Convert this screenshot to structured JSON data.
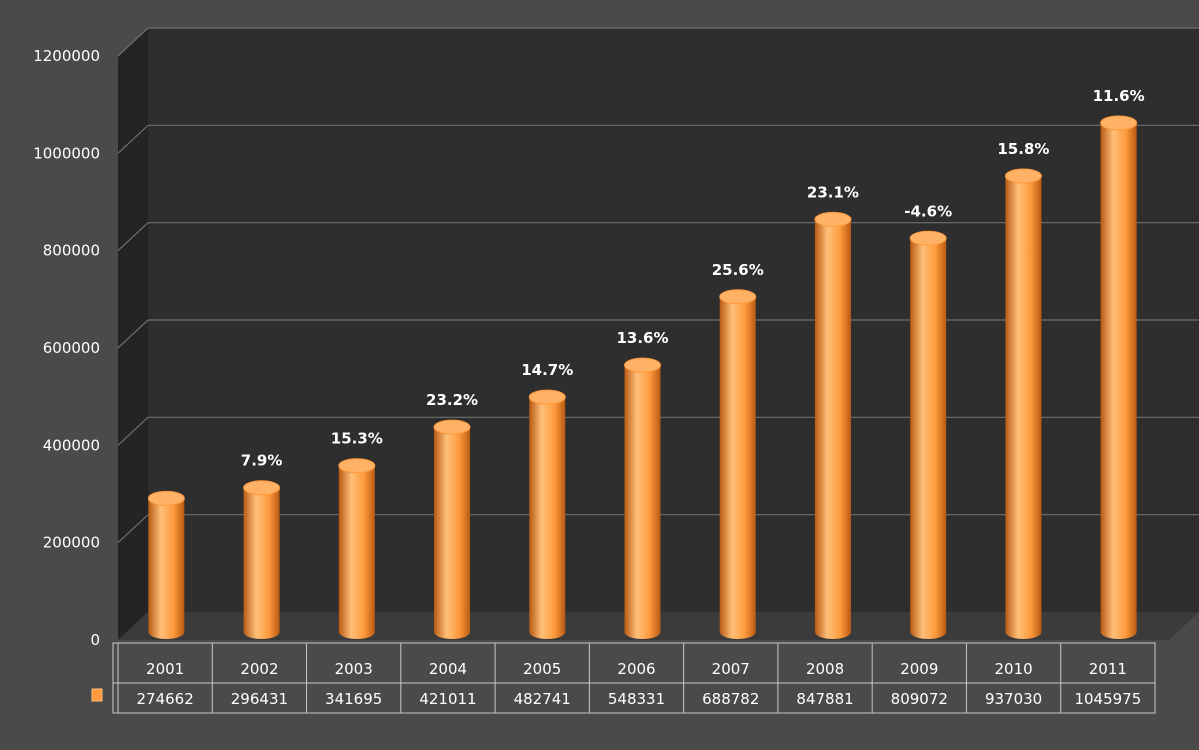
{
  "chart_data": {
    "type": "bar",
    "categories": [
      "2001",
      "2002",
      "2003",
      "2004",
      "2005",
      "2006",
      "2007",
      "2008",
      "2009",
      "2010",
      "2011"
    ],
    "values": [
      274662,
      296431,
      341695,
      421011,
      482741,
      548331,
      688782,
      847881,
      809072,
      937030,
      1045975
    ],
    "data_table_values": [
      "274662",
      "296431",
      "341695",
      "421011",
      "482741",
      "548331",
      "688782",
      "847881",
      "809072",
      "937030",
      "1045975"
    ],
    "growth_labels": [
      "",
      "7.9%",
      "15.3%",
      "23.2%",
      "14.7%",
      "13.6%",
      "25.6%",
      "23.1%",
      "-4.6%",
      "15.8%",
      "11.6%"
    ],
    "y_ticks": [
      "0",
      "200000",
      "400000",
      "600000",
      "800000",
      "1000000",
      "1200000"
    ],
    "ylim": [
      0,
      1200000
    ],
    "grid": true,
    "legend": "data-table",
    "colors": {
      "background": "#4a4a4a",
      "plot_wall": "#2e2e2e",
      "side_wall": "#242424",
      "floor": "#3b3b3b",
      "gridline": "#6e6e6e",
      "bar_light": "#ffc07a",
      "bar_mid": "#ff9a3c",
      "bar_dark": "#b85a12",
      "bar_top": "#ffb266",
      "table_border": "#c8c8c8"
    }
  }
}
